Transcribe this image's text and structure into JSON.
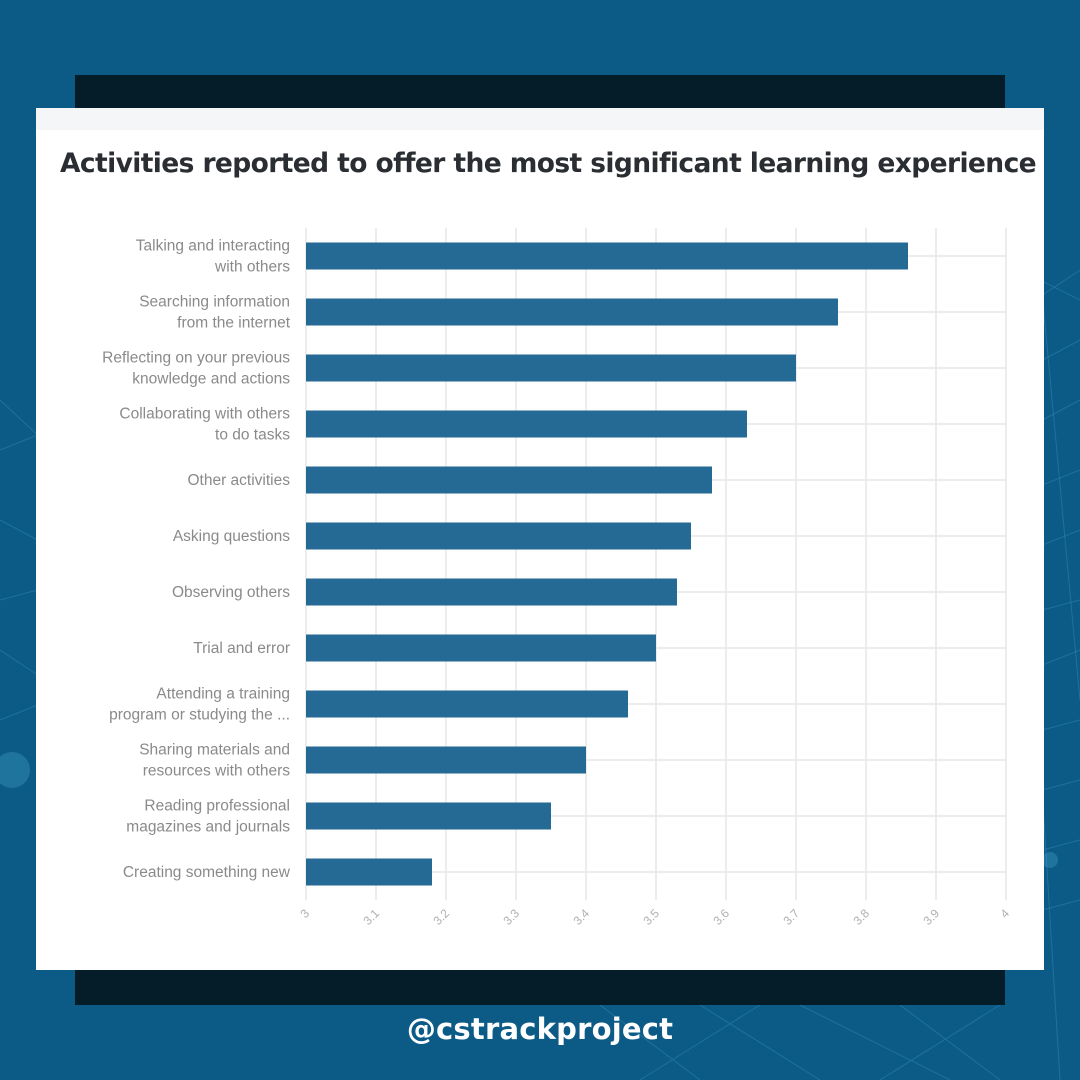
{
  "colors": {
    "background": "#0b5b86",
    "panel": "#051c29",
    "card": "#ffffff",
    "bar": "#256a94",
    "grid": "#e6e6e6",
    "label": "#8a8a8a"
  },
  "handle": "@cstrackproject",
  "chart_data": {
    "type": "bar",
    "orientation": "horizontal",
    "title": "Activities reported to offer the most significant learning experience",
    "xlabel": "",
    "ylabel": "",
    "xlim": [
      3,
      4
    ],
    "grid": true,
    "ticks": [
      "3",
      "3.1",
      "3.2",
      "3.3",
      "3.4",
      "3.5",
      "3.6",
      "3.7",
      "3.8",
      "3.9",
      "4"
    ],
    "categories": [
      [
        "Talking and interacting",
        "with others"
      ],
      [
        "Searching information",
        "from the internet"
      ],
      [
        "Reflecting on your previous",
        "knowledge and actions"
      ],
      [
        "Collaborating with others",
        "to do tasks"
      ],
      [
        "Other activities"
      ],
      [
        "Asking questions"
      ],
      [
        "Observing others"
      ],
      [
        "Trial and error"
      ],
      [
        "Attending a training",
        "program or studying the ..."
      ],
      [
        "Sharing materials and",
        "resources with others"
      ],
      [
        "Reading professional",
        "magazines and journals"
      ],
      [
        "Creating something new"
      ]
    ],
    "values": [
      3.86,
      3.76,
      3.7,
      3.63,
      3.58,
      3.55,
      3.53,
      3.5,
      3.46,
      3.4,
      3.35,
      3.18
    ]
  }
}
